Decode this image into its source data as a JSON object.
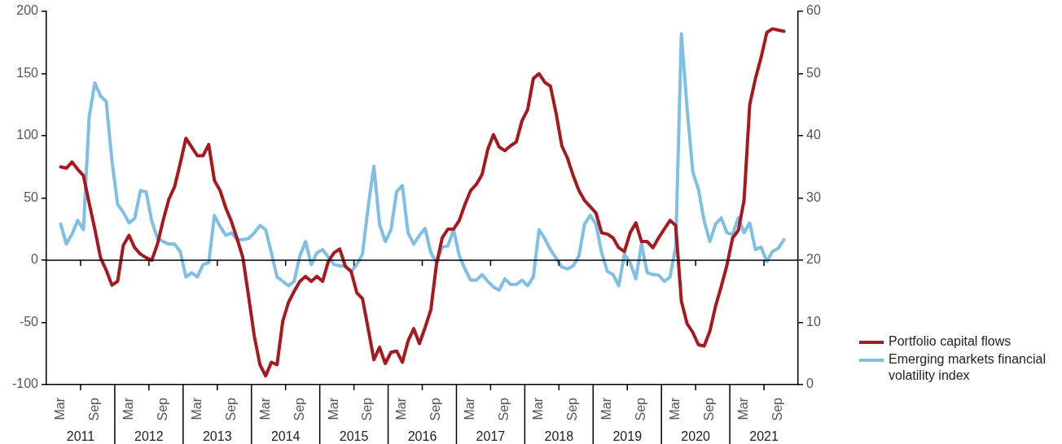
{
  "chart_data": {
    "type": "line",
    "categories": [
      null,
      null,
      "Mar",
      null,
      null,
      null,
      null,
      null,
      "Sep",
      null,
      null,
      null,
      null,
      null,
      "Mar",
      null,
      null,
      null,
      null,
      null,
      "Sep",
      null,
      null,
      null,
      null,
      null,
      "Mar",
      null,
      null,
      null,
      null,
      null,
      "Sep",
      null,
      null,
      null,
      null,
      null,
      "Mar",
      null,
      null,
      null,
      null,
      null,
      "Sep",
      null,
      null,
      null,
      null,
      null,
      "Mar",
      null,
      null,
      null,
      null,
      null,
      "Sep",
      null,
      null,
      null,
      null,
      null,
      "Mar",
      null,
      null,
      null,
      null,
      null,
      "Sep",
      null,
      null,
      null,
      null,
      null,
      "Mar",
      null,
      null,
      null,
      null,
      null,
      "Sep",
      null,
      null,
      null,
      null,
      null,
      "Mar",
      null,
      null,
      null,
      null,
      null,
      "Sep",
      null,
      null,
      null,
      null,
      null,
      "Mar",
      null,
      null,
      null,
      null,
      null,
      "Sep",
      null,
      null,
      null,
      null,
      null,
      "Mar",
      null,
      null,
      null,
      null,
      null,
      "Sep",
      null,
      null,
      null,
      null,
      null,
      "Mar",
      null,
      null,
      null,
      null,
      null,
      "Sep",
      null,
      null,
      null
    ],
    "series": [
      {
        "name": "Portfolio capital flows",
        "color": "#a6191e",
        "axis": "y",
        "values": [
          null,
          null,
          75,
          74,
          79,
          73,
          68,
          46,
          25,
          2,
          -8,
          -20,
          -17,
          12,
          20,
          10,
          5,
          2,
          0,
          13,
          32,
          49,
          59,
          78,
          98,
          91,
          84,
          84,
          93,
          64,
          56,
          42,
          31,
          17,
          2,
          -29,
          -61,
          -84,
          -93,
          -82,
          -84,
          -49,
          -34,
          -25,
          -17,
          -13,
          -17,
          -13,
          -17,
          -1,
          6,
          9,
          -5,
          -9,
          -26,
          -31,
          -55,
          -80,
          -70,
          -83,
          -74,
          -73,
          -82,
          -65,
          -55,
          -67,
          -54,
          -40,
          -3,
          18,
          25,
          25,
          32,
          45,
          56,
          61,
          69,
          89,
          101,
          91,
          88,
          92,
          95,
          112,
          121,
          146,
          150,
          143,
          140,
          118,
          92,
          82,
          68,
          56,
          48,
          43,
          38,
          22,
          21,
          18,
          10,
          7,
          22,
          30,
          15,
          15,
          10,
          18,
          25,
          32,
          28,
          -33,
          -51,
          -58,
          -68,
          -69,
          -57,
          -37,
          -21,
          -4,
          18,
          24,
          48,
          125,
          146,
          163,
          183,
          186,
          185,
          184,
          null,
          null
        ]
      },
      {
        "name": "Emerging markets financial volatility index",
        "color": "#7fbfe6",
        "axis": "y2",
        "values": [
          null,
          null,
          25.8,
          22.6,
          24.2,
          26.4,
          24.9,
          43,
          48.5,
          46.4,
          45.5,
          36,
          29,
          27.7,
          26,
          26.7,
          31.2,
          31,
          26.3,
          23.5,
          23,
          22.6,
          22.6,
          21.4,
          17.3,
          18,
          17.3,
          19.3,
          19.6,
          27.2,
          25.4,
          24,
          24.4,
          23.3,
          23.3,
          23.5,
          24.4,
          25.6,
          24.9,
          21.2,
          17.3,
          16.6,
          15.9,
          16.6,
          20.7,
          23,
          19.3,
          21.2,
          21.7,
          20.5,
          19.3,
          19.1,
          19.1,
          18.2,
          19.3,
          21,
          28.6,
          35.1,
          25.8,
          23,
          24.9,
          31,
          32,
          24.4,
          22.6,
          24,
          25.1,
          21.2,
          19.6,
          22.1,
          22.3,
          24.9,
          20.7,
          18.6,
          16.8,
          16.8,
          17.7,
          16.6,
          15.7,
          15.2,
          17,
          16.1,
          16.1,
          16.8,
          15.9,
          17.3,
          24.9,
          23.5,
          21.7,
          20.3,
          18.9,
          18.6,
          19.1,
          20.7,
          25.8,
          27.2,
          25.8,
          21.2,
          18.2,
          17.7,
          15.9,
          21,
          19.6,
          17,
          22.6,
          18,
          17.7,
          17.6,
          16.6,
          17.3,
          22.1,
          56.4,
          44.4,
          34.2,
          31.4,
          26.3,
          23,
          25.8,
          26.8,
          24.4,
          24.2,
          26.8,
          24.4,
          26,
          21.7,
          22.1,
          19.8,
          21.4,
          21.9,
          23.3,
          null,
          null
        ]
      }
    ],
    "ylim": [
      -100,
      200
    ],
    "yticks": [
      -100,
      -50,
      0,
      50,
      100,
      150,
      200
    ],
    "y2lim": [
      0,
      60
    ],
    "y2ticks": [
      0,
      10,
      20,
      30,
      40,
      50,
      60
    ],
    "ref_lines": [
      {
        "axis": "y",
        "value": 0,
        "color": "#000000"
      }
    ],
    "annotations": [
      "2011",
      "2012",
      "2013",
      "2014",
      "2015",
      "2016",
      "2017",
      "2018",
      "2019",
      "2020",
      "2021"
    ],
    "grid": false,
    "legend": "right",
    "marker": "none",
    "line_style": "solid"
  }
}
